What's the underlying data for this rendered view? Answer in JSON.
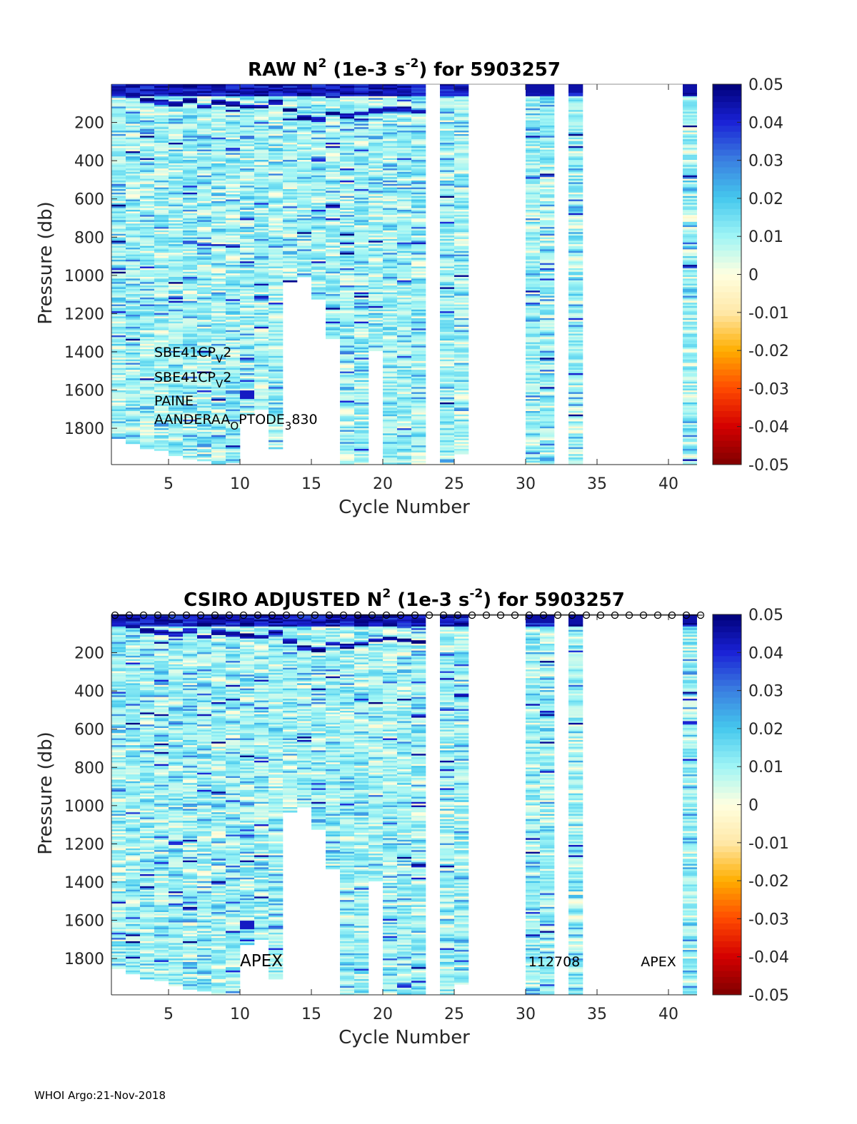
{
  "footer": "WHOI Argo:21-Nov-2018",
  "colorbar_ticks": [
    "0.05",
    "0.04",
    "0.03",
    "0.02",
    "0.01",
    "0",
    "-0.01",
    "-0.02",
    "-0.03",
    "-0.04",
    "-0.05"
  ],
  "colormap_stops": [
    "#7f0000",
    "#d40000",
    "#ff4a00",
    "#ffae00",
    "#ffe8a8",
    "#ffffe0",
    "#9ff5f5",
    "#45c8ee",
    "#3a7fe0",
    "#1a22d6",
    "#000078"
  ],
  "chart_data": [
    {
      "type": "heatmap",
      "title_parts": {
        "pre": "RAW N",
        "sup1": "2",
        "mid": " (1e-3 s",
        "sup2": "-2",
        "post": ") for 5903257"
      },
      "xlabel": "Cycle Number",
      "ylabel": "Pressure (db)",
      "xlim": [
        1,
        42
      ],
      "ylim": [
        1990,
        0
      ],
      "clim": [
        -0.05,
        0.05
      ],
      "xticks": [
        "5",
        "10",
        "15",
        "20",
        "25",
        "30",
        "35",
        "40"
      ],
      "yticks": [
        "200",
        "400",
        "600",
        "800",
        "1000",
        "1200",
        "1400",
        "1600",
        "1800"
      ],
      "profiles_present": [
        1,
        2,
        3,
        4,
        5,
        6,
        7,
        8,
        9,
        10,
        11,
        12,
        13,
        14,
        15,
        16,
        17,
        18,
        19,
        20,
        21,
        22,
        24,
        25,
        30,
        31,
        33,
        41
      ],
      "profile_max_pressure": {
        "1": 1850,
        "2": 1880,
        "3": 1900,
        "4": 1910,
        "5": 1940,
        "6": 1960,
        "7": 1970,
        "8": 1990,
        "9": 1980,
        "10": 1720,
        "11": 1700,
        "12": 1900,
        "13": 1030,
        "14": 1000,
        "15": 1120,
        "16": 1330,
        "17": 1990,
        "18": 1990,
        "19": 1390,
        "20": 1990,
        "21": 1990,
        "22": 1990,
        "24": 1990,
        "25": 1930,
        "30": 1990,
        "31": 1990,
        "33": 1990,
        "41": 1990
      },
      "annotations": [
        {
          "base": "SBE41CP",
          "sub": "V",
          "tail": "2"
        },
        {
          "base": "SBE41CP",
          "sub": "V",
          "tail": "2"
        },
        {
          "base": "PAINE",
          "sub": "",
          "tail": ""
        },
        {
          "base": "AANDERAA",
          "sub": "O",
          "tail": "PTODE",
          "sub2": "3",
          "tail2": "830"
        }
      ]
    },
    {
      "type": "heatmap",
      "title_parts": {
        "pre": "CSIRO  ADJUSTED N",
        "sup1": "2",
        "mid": " (1e-3 s",
        "sup2": "-2",
        "post": ") for 5903257"
      },
      "xlabel": "Cycle Number",
      "ylabel": "Pressure (db)",
      "xlim": [
        1,
        42
      ],
      "ylim": [
        1990,
        0
      ],
      "clim": [
        -0.05,
        0.05
      ],
      "xticks": [
        "5",
        "10",
        "15",
        "20",
        "25",
        "30",
        "35",
        "40"
      ],
      "yticks": [
        "200",
        "400",
        "600",
        "800",
        "1000",
        "1200",
        "1400",
        "1600",
        "1800"
      ],
      "profiles_present": [
        1,
        2,
        3,
        4,
        5,
        6,
        7,
        8,
        9,
        10,
        11,
        12,
        13,
        14,
        15,
        16,
        17,
        18,
        19,
        20,
        21,
        22,
        24,
        25,
        30,
        31,
        33,
        41
      ],
      "marker_cycles": [
        1,
        2,
        3,
        4,
        5,
        6,
        7,
        8,
        9,
        10,
        11,
        12,
        13,
        14,
        15,
        16,
        17,
        18,
        19,
        20,
        21,
        22,
        23,
        24,
        25,
        26,
        27,
        28,
        29,
        30,
        31,
        32,
        33,
        34,
        35,
        36,
        37,
        38,
        39,
        40,
        41,
        42
      ],
      "annotations": [
        {
          "text": "APEX",
          "x": 11.5,
          "y": 1810
        },
        {
          "text": "112708",
          "x": 32,
          "y": 1810
        },
        {
          "text": "APEX",
          "x": 39.3,
          "y": 1810
        }
      ]
    }
  ]
}
